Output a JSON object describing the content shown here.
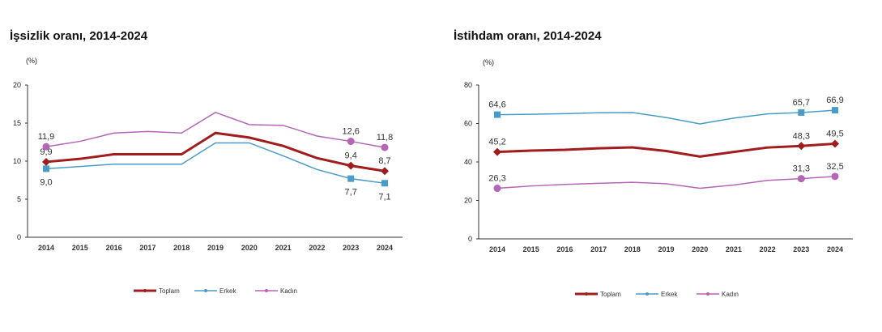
{
  "chart_data": [
    {
      "type": "line",
      "title": "İşsizlik oranı, 2014-2024",
      "ylabel": "(%)",
      "ylim": [
        0,
        20
      ],
      "yticks": [
        0,
        5,
        10,
        15,
        20
      ],
      "categories": [
        "2014",
        "2015",
        "2016",
        "2017",
        "2018",
        "2019",
        "2020",
        "2021",
        "2022",
        "2023",
        "2024"
      ],
      "labeled_years": [
        "2014",
        "2023",
        "2024"
      ],
      "legend_position": "bottom",
      "grid": false,
      "series": [
        {
          "name": "Toplam",
          "color": "#a11d1d",
          "marker": "diamond",
          "values": [
            9.9,
            10.3,
            10.9,
            10.9,
            10.9,
            13.7,
            13.1,
            12.0,
            10.4,
            9.4,
            8.7
          ],
          "labels": [
            "9,9",
            "9,4",
            "8,7"
          ],
          "label_side": "above"
        },
        {
          "name": "Erkek",
          "color": "#4a9cc8",
          "marker": "square",
          "values": [
            9.0,
            9.3,
            9.6,
            9.6,
            9.6,
            12.4,
            12.4,
            10.7,
            8.9,
            7.7,
            7.1
          ],
          "labels": [
            "9,0",
            "7,7",
            "7,1"
          ],
          "label_side": "below"
        },
        {
          "name": "Kadın",
          "color": "#b565b5",
          "marker": "circle",
          "values": [
            11.9,
            12.6,
            13.7,
            13.9,
            13.7,
            16.4,
            14.8,
            14.7,
            13.3,
            12.6,
            11.8
          ],
          "labels": [
            "11,9",
            "12,6",
            "11,8"
          ],
          "label_side": "above"
        }
      ]
    },
    {
      "type": "line",
      "title": "İstihdam oranı, 2014-2024",
      "ylabel": "(%)",
      "ylim": [
        0,
        80
      ],
      "yticks": [
        0,
        20,
        40,
        60,
        80
      ],
      "categories": [
        "2014",
        "2015",
        "2016",
        "2017",
        "2018",
        "2019",
        "2020",
        "2021",
        "2022",
        "2023",
        "2024"
      ],
      "labeled_years": [
        "2014",
        "2023",
        "2024"
      ],
      "legend_position": "bottom",
      "grid": false,
      "series": [
        {
          "name": "Toplam",
          "color": "#a11d1d",
          "marker": "diamond",
          "values": [
            45.2,
            45.9,
            46.3,
            47.1,
            47.6,
            45.7,
            42.8,
            45.2,
            47.5,
            48.3,
            49.5
          ],
          "labels": [
            "45,2",
            "48,3",
            "49,5"
          ],
          "label_side": "above"
        },
        {
          "name": "Erkek",
          "color": "#4a9cc8",
          "marker": "square",
          "values": [
            64.6,
            64.8,
            65.1,
            65.6,
            65.7,
            63.1,
            59.8,
            62.8,
            65.0,
            65.7,
            66.9
          ],
          "labels": [
            "64,6",
            "65,7",
            "66,9"
          ],
          "label_side": "above"
        },
        {
          "name": "Kadın",
          "color": "#b565b5",
          "marker": "circle",
          "values": [
            26.3,
            27.5,
            28.3,
            28.9,
            29.4,
            28.7,
            26.3,
            28.0,
            30.4,
            31.3,
            32.5
          ],
          "labels": [
            "26,3",
            "31,3",
            "32,5"
          ],
          "label_side": "above"
        }
      ]
    }
  ]
}
